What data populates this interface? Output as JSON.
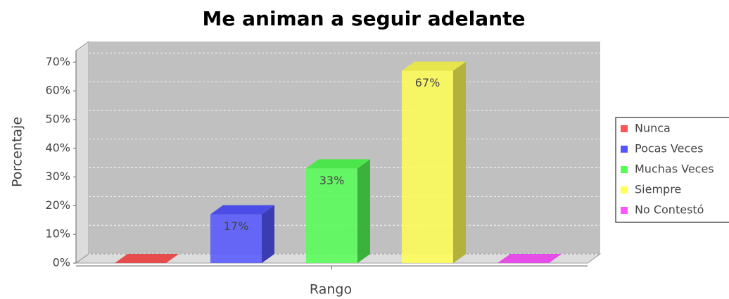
{
  "chart_data": {
    "type": "bar",
    "title": "Me animan a seguir adelante",
    "xlabel": "Rango",
    "ylabel": "Porcentaje",
    "categories": [
      null
    ],
    "series": [
      {
        "name": "Nunca",
        "color": "#ff5555",
        "values": [
          0
        ]
      },
      {
        "name": "Pocas Veces",
        "color": "#5555ff",
        "values": [
          17
        ],
        "value_labels": [
          "17%"
        ]
      },
      {
        "name": "Muchas Veces",
        "color": "#55ff55",
        "values": [
          33
        ],
        "value_labels": [
          "33%"
        ]
      },
      {
        "name": "Siempre",
        "color": "#ffff55",
        "values": [
          67
        ],
        "value_labels": [
          "67%"
        ]
      },
      {
        "name": "No Contestó",
        "color": "#ff55ff",
        "values": [
          0
        ]
      }
    ],
    "ylim": [
      0,
      74
    ],
    "yticks": [
      {
        "value": 0,
        "label": "0%"
      },
      {
        "value": 10,
        "label": "10%"
      },
      {
        "value": 20,
        "label": "20%"
      },
      {
        "value": 30,
        "label": "30%"
      },
      {
        "value": 40,
        "label": "40%"
      },
      {
        "value": 50,
        "label": "50%"
      },
      {
        "value": 60,
        "label": "60%"
      },
      {
        "value": 70,
        "label": "70%"
      }
    ],
    "grid": true,
    "legend": "right"
  }
}
